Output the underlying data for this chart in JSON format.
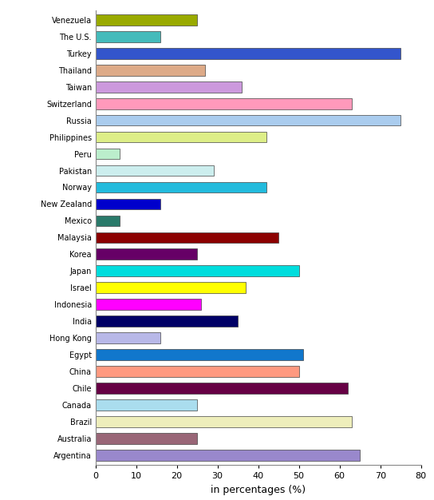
{
  "categories": [
    "Venezuela",
    "The U.S.",
    "Turkey",
    "Thailand",
    "Taiwan",
    "Switzerland",
    "Russia",
    "Philippines",
    "Peru",
    "Pakistan",
    "Norway",
    "New Zealand",
    "Mexico",
    "Malaysia",
    "Korea",
    "Japan",
    "Israel",
    "Indonesia",
    "India",
    "Hong Kong",
    "Egypt",
    "China",
    "Chile",
    "Canada",
    "Brazil",
    "Australia",
    "Argentina"
  ],
  "values": [
    25,
    16,
    75,
    27,
    36,
    63,
    75,
    42,
    6,
    29,
    42,
    16,
    6,
    45,
    25,
    50,
    37,
    26,
    35,
    16,
    51,
    50,
    62,
    25,
    63,
    25,
    65
  ],
  "colors": [
    "#99aa00",
    "#44bbbb",
    "#3355cc",
    "#ddaa88",
    "#cc99dd",
    "#ff99bb",
    "#aaccee",
    "#ddee88",
    "#bbeecc",
    "#cceeee",
    "#22bbdd",
    "#0000cc",
    "#2a7a6a",
    "#8b0000",
    "#660066",
    "#00dddd",
    "#ffff00",
    "#ff00ff",
    "#000066",
    "#b8b8e8",
    "#1177cc",
    "#ff9980",
    "#660044",
    "#aaddee",
    "#eeeebb",
    "#996677",
    "#9988cc"
  ],
  "xlabel": "in percentages (%)",
  "xlim": [
    0,
    80
  ],
  "xticks": [
    0,
    10,
    20,
    30,
    40,
    50,
    60,
    70,
    80
  ],
  "background_color": "#ffffff",
  "bar_height": 0.65,
  "title": "",
  "figwidth": 5.44,
  "figheight": 6.26,
  "dpi": 100
}
